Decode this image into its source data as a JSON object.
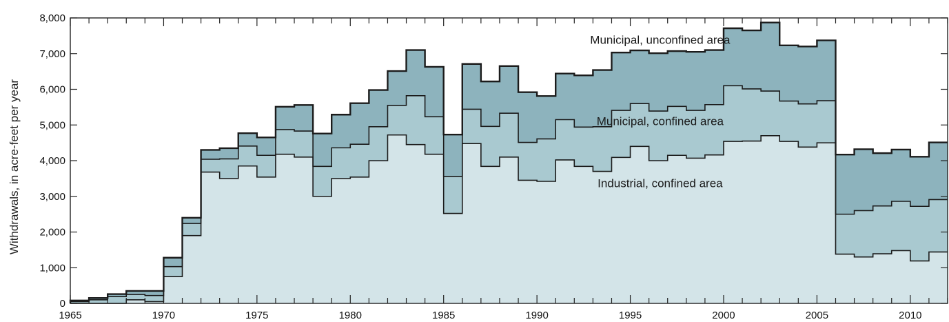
{
  "chart_data": {
    "type": "area",
    "title": "",
    "xlabel": "",
    "ylabel": "Withdrawals, in acre-feet per year",
    "xlim": [
      1965,
      2012
    ],
    "ylim": [
      0,
      8000
    ],
    "x_ticks": [
      1965,
      1970,
      1975,
      1980,
      1985,
      1990,
      1995,
      2000,
      2005,
      2010
    ],
    "y_ticks": [
      {
        "value": 0,
        "label": "0"
      },
      {
        "value": 1000,
        "label": "1,000"
      },
      {
        "value": 2000,
        "label": "2,000"
      },
      {
        "value": 3000,
        "label": "3,000"
      },
      {
        "value": 4000,
        "label": "4,000"
      },
      {
        "value": 5000,
        "label": "5,000"
      },
      {
        "value": 6000,
        "label": "6,000"
      },
      {
        "value": 7000,
        "label": "7,000"
      },
      {
        "value": 8000,
        "label": "8,000"
      }
    ],
    "years": [
      1965,
      1966,
      1967,
      1968,
      1969,
      1970,
      1971,
      1972,
      1973,
      1974,
      1975,
      1976,
      1977,
      1978,
      1979,
      1980,
      1981,
      1982,
      1983,
      1984,
      1985,
      1986,
      1987,
      1988,
      1989,
      1990,
      1991,
      1992,
      1993,
      1994,
      1995,
      1996,
      1997,
      1998,
      1999,
      2000,
      2001,
      2002,
      2003,
      2004,
      2005,
      2006,
      2007,
      2008,
      2009,
      2010,
      2011
    ],
    "stacking": "cumulative",
    "series": [
      {
        "name": "Industrial, confined area",
        "color": "#d3e4e8",
        "values": [
          0,
          0,
          0,
          100,
          50,
          750,
          1900,
          3680,
          3500,
          3850,
          3540,
          4180,
          4100,
          3000,
          3500,
          3540,
          4000,
          4720,
          4450,
          4180,
          2520,
          4480,
          3840,
          4100,
          3450,
          3420,
          4020,
          3840,
          3700,
          4090,
          4400,
          4000,
          4150,
          4070,
          4160,
          4540,
          4550,
          4700,
          4540,
          4380,
          4500,
          1380,
          1300,
          1390,
          1480,
          1190,
          1440
        ]
      },
      {
        "name": "Municipal, confined area",
        "color": "#a9c9d0",
        "values": [
          50,
          100,
          190,
          150,
          170,
          280,
          340,
          360,
          550,
          560,
          610,
          690,
          730,
          840,
          860,
          920,
          950,
          830,
          1370,
          1050,
          1040,
          960,
          1120,
          1230,
          1060,
          1190,
          1130,
          1100,
          1250,
          1320,
          1200,
          1390,
          1370,
          1340,
          1410,
          1560,
          1460,
          1250,
          1130,
          1210,
          1180,
          1120,
          1300,
          1340,
          1380,
          1530,
          1470
        ]
      },
      {
        "name": "Municipal, unconfined area",
        "color": "#8db3bd",
        "values": [
          30,
          50,
          70,
          100,
          130,
          250,
          160,
          260,
          300,
          360,
          500,
          640,
          730,
          920,
          930,
          1150,
          1030,
          960,
          1280,
          1400,
          1170,
          1270,
          1260,
          1320,
          1410,
          1200,
          1290,
          1450,
          1590,
          1620,
          1490,
          1620,
          1550,
          1640,
          1530,
          1610,
          1640,
          1920,
          1560,
          1610,
          1690,
          1670,
          1720,
          1480,
          1450,
          1390,
          1600
        ]
      }
    ],
    "annotations": [
      {
        "text": "Municipal, unconfined area",
        "x": 1996.6,
        "y": 7280
      },
      {
        "text": "Municipal, confined area",
        "x": 1996.6,
        "y": 5000
      },
      {
        "text": "Industrial, confined area",
        "x": 1996.6,
        "y": 3260
      }
    ]
  }
}
